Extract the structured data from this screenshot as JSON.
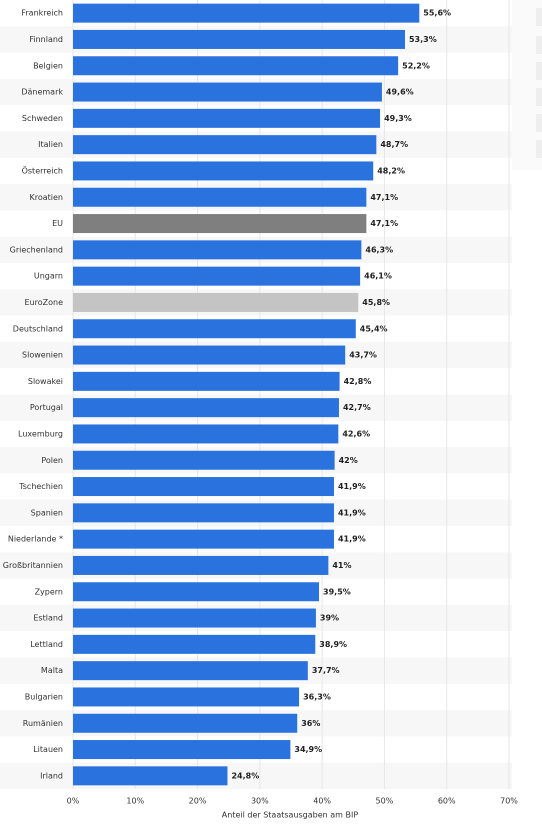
{
  "chart_data": {
    "type": "bar",
    "orientation": "horizontal",
    "xlabel": "Anteil der Staatsausgaben am BIP",
    "categories": [
      "Frankreich",
      "Finnland",
      "Belgien",
      "Dänemark",
      "Schweden",
      "Italien",
      "Österreich",
      "Kroatien",
      "EU",
      "Griechenland",
      "Ungarn",
      "EuroZone",
      "Deutschland",
      "Slowenien",
      "Slowakei",
      "Portugal",
      "Luxemburg",
      "Polen",
      "Tschechien",
      "Spanien",
      "Niederlande *",
      "Großbritannien",
      "Zypern",
      "Estland",
      "Lettland",
      "Malta",
      "Bulgarien",
      "Rumänien",
      "Litauen",
      "Irland"
    ],
    "values": [
      55.6,
      53.3,
      52.2,
      49.6,
      49.3,
      48.7,
      48.2,
      47.1,
      47.1,
      46.3,
      46.1,
      45.8,
      45.4,
      43.7,
      42.8,
      42.7,
      42.6,
      42,
      41.9,
      41.9,
      41.9,
      41,
      39.5,
      39,
      38.9,
      37.7,
      36.3,
      36,
      34.9,
      24.8
    ],
    "value_labels": [
      "55,6%",
      "53,3%",
      "52,2%",
      "49,6%",
      "49,3%",
      "48,7%",
      "48,2%",
      "47,1%",
      "47,1%",
      "46,3%",
      "46,1%",
      "45,8%",
      "45,4%",
      "43,7%",
      "42,8%",
      "42,7%",
      "42,6%",
      "42%",
      "41,9%",
      "41,9%",
      "41,9%",
      "41%",
      "39,5%",
      "39%",
      "38,9%",
      "37,7%",
      "36,3%",
      "36%",
      "34,9%",
      "24,8%"
    ],
    "colors": [
      "#2a72dd",
      "#2a72dd",
      "#2a72dd",
      "#2a72dd",
      "#2a72dd",
      "#2a72dd",
      "#2a72dd",
      "#2a72dd",
      "#7f7f7f",
      "#2a72dd",
      "#2a72dd",
      "#c4c4c5",
      "#2a72dd",
      "#2a72dd",
      "#2a72dd",
      "#2a72dd",
      "#2a72dd",
      "#2a72dd",
      "#2a72dd",
      "#2a72dd",
      "#2a72dd",
      "#2a72dd",
      "#2a72dd",
      "#2a72dd",
      "#2a72dd",
      "#2a72dd",
      "#2a72dd",
      "#2a72dd",
      "#2a72dd",
      "#2a72dd"
    ],
    "xlim": [
      0,
      70
    ],
    "xticks": [
      {
        "value": 0,
        "label": "0%"
      },
      {
        "value": 10,
        "label": "10%"
      },
      {
        "value": 20,
        "label": "20%"
      },
      {
        "value": 30,
        "label": "30%"
      },
      {
        "value": 40,
        "label": "40%"
      },
      {
        "value": 50,
        "label": "50%"
      },
      {
        "value": 60,
        "label": "60%"
      },
      {
        "value": 70,
        "label": "70%"
      }
    ],
    "grid": true
  }
}
